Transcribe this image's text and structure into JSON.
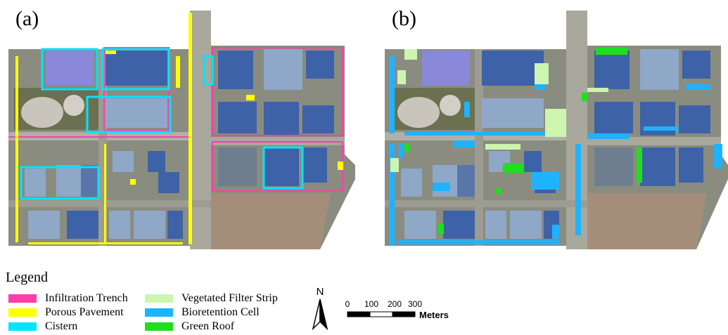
{
  "panels": {
    "a": {
      "label": "(a)"
    },
    "b": {
      "label": "(b)"
    }
  },
  "legend": {
    "title": "Legend",
    "items": [
      {
        "label": "Infiltration Trench",
        "color": "#ff3da8"
      },
      {
        "label": "Porous Pavement",
        "color": "#ffff00"
      },
      {
        "label": "Cistern",
        "color": "#00e5ff"
      },
      {
        "label": "Vegetated Filter Strip",
        "color": "#ccf5b0"
      },
      {
        "label": "Bioretention Cell",
        "color": "#1fb3ff"
      },
      {
        "label": "Green Roof",
        "color": "#1de01d"
      }
    ]
  },
  "north_arrow": {
    "letter": "N"
  },
  "scale_bar": {
    "ticks": [
      "0",
      "100",
      "200",
      "300"
    ],
    "unit": "Meters"
  },
  "colors": {
    "roof_dark": "#3e62a8",
    "roof_light": "#8fa8c8",
    "roof_purple": "#8a88d8",
    "ground": "#8a8c80",
    "vegetation": "#5f6e4a",
    "bare_soil": "#a48e7a"
  }
}
